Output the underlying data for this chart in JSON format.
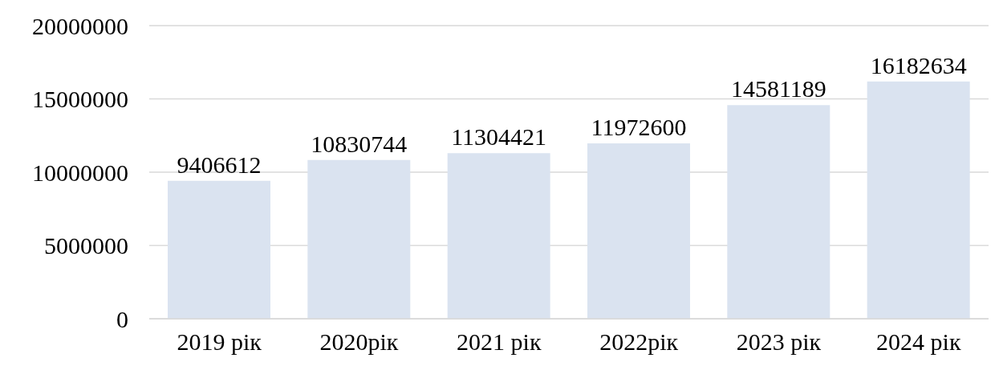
{
  "chart_data": {
    "type": "bar",
    "categories": [
      "2019 рік",
      "2020рік",
      "2021 рік",
      "2022рік",
      "2023 рік",
      "2024 рік"
    ],
    "values": [
      9406612,
      10830744,
      11304421,
      11972600,
      14581189,
      16182634
    ],
    "color": "#dae3f0",
    "ylim": [
      0,
      20000000
    ],
    "yticks": [
      0,
      5000000,
      10000000,
      15000000,
      20000000
    ],
    "grid": "y",
    "data_labels": true
  }
}
